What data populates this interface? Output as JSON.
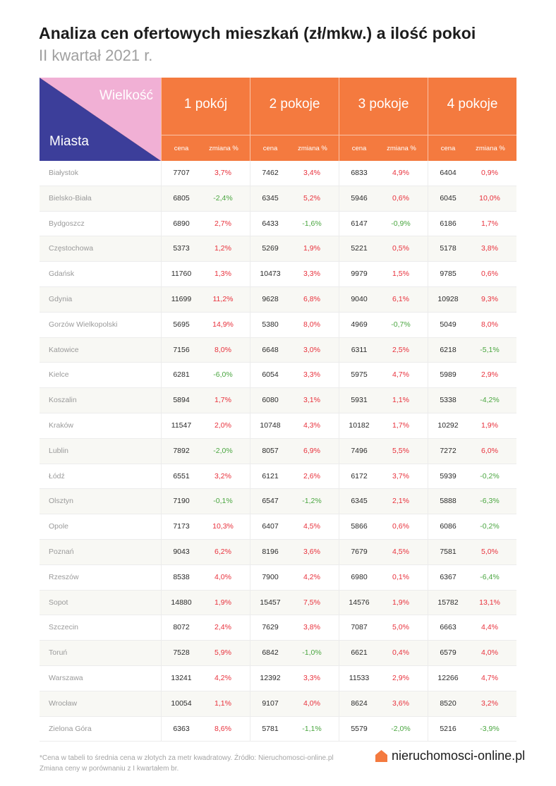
{
  "title": "Analiza cen ofertowych mieszkań (zł/mkw.) a ilość pokoi",
  "subtitle": "II kwartał 2021 r.",
  "colors": {
    "header": "#f47a3f",
    "corner_blue": "#3c3e9a",
    "corner_pink": "#f1b0d5",
    "increase": "#e8313c",
    "decrease": "#4aa640"
  },
  "corner": {
    "top_label": "Wielkość",
    "bottom_label": "Miasta"
  },
  "groups": [
    {
      "title": "1 pokój",
      "col_price": "cena",
      "col_change": "zmiana %"
    },
    {
      "title": "2 pokoje",
      "col_price": "cena",
      "col_change": "zmiana %"
    },
    {
      "title": "3 pokoje",
      "col_price": "cena",
      "col_change": "zmiana %"
    },
    {
      "title": "4 pokoje",
      "col_price": "cena",
      "col_change": "zmiana %"
    }
  ],
  "rows": [
    {
      "city": "Białystok",
      "cells": [
        {
          "price": "7707",
          "change": "3,7%"
        },
        {
          "price": "7462",
          "change": "3,4%"
        },
        {
          "price": "6833",
          "change": "4,9%"
        },
        {
          "price": "6404",
          "change": "0,9%"
        }
      ]
    },
    {
      "city": "Bielsko-Biała",
      "cells": [
        {
          "price": "6805",
          "change": "-2,4%"
        },
        {
          "price": "6345",
          "change": "5,2%"
        },
        {
          "price": "5946",
          "change": "0,6%"
        },
        {
          "price": "6045",
          "change": "10,0%"
        }
      ]
    },
    {
      "city": "Bydgoszcz",
      "cells": [
        {
          "price": "6890",
          "change": "2,7%"
        },
        {
          "price": "6433",
          "change": "-1,6%"
        },
        {
          "price": "6147",
          "change": "-0,9%"
        },
        {
          "price": "6186",
          "change": "1,7%"
        }
      ]
    },
    {
      "city": "Częstochowa",
      "cells": [
        {
          "price": "5373",
          "change": "1,2%"
        },
        {
          "price": "5269",
          "change": "1,9%"
        },
        {
          "price": "5221",
          "change": "0,5%"
        },
        {
          "price": "5178",
          "change": "3,8%"
        }
      ]
    },
    {
      "city": "Gdańsk",
      "cells": [
        {
          "price": "11760",
          "change": "1,3%"
        },
        {
          "price": "10473",
          "change": "3,3%"
        },
        {
          "price": "9979",
          "change": "1,5%"
        },
        {
          "price": "9785",
          "change": "0,6%"
        }
      ]
    },
    {
      "city": "Gdynia",
      "cells": [
        {
          "price": "11699",
          "change": "11,2%"
        },
        {
          "price": "9628",
          "change": "6,8%"
        },
        {
          "price": "9040",
          "change": "6,1%"
        },
        {
          "price": "10928",
          "change": "9,3%"
        }
      ]
    },
    {
      "city": "Gorzów Wielkopolski",
      "cells": [
        {
          "price": "5695",
          "change": "14,9%"
        },
        {
          "price": "5380",
          "change": "8,0%"
        },
        {
          "price": "4969",
          "change": "-0,7%"
        },
        {
          "price": "5049",
          "change": "8,0%"
        }
      ]
    },
    {
      "city": "Katowice",
      "cells": [
        {
          "price": "7156",
          "change": "8,0%"
        },
        {
          "price": "6648",
          "change": "3,0%"
        },
        {
          "price": "6311",
          "change": "2,5%"
        },
        {
          "price": "6218",
          "change": "-5,1%"
        }
      ]
    },
    {
      "city": "Kielce",
      "cells": [
        {
          "price": "6281",
          "change": "-6,0%"
        },
        {
          "price": "6054",
          "change": "3,3%"
        },
        {
          "price": "5975",
          "change": "4,7%"
        },
        {
          "price": "5989",
          "change": "2,9%"
        }
      ]
    },
    {
      "city": "Koszalin",
      "cells": [
        {
          "price": "5894",
          "change": "1,7%"
        },
        {
          "price": "6080",
          "change": "3,1%"
        },
        {
          "price": "5931",
          "change": "1,1%"
        },
        {
          "price": "5338",
          "change": "-4,2%"
        }
      ]
    },
    {
      "city": "Kraków",
      "cells": [
        {
          "price": "11547",
          "change": "2,0%"
        },
        {
          "price": "10748",
          "change": "4,3%"
        },
        {
          "price": "10182",
          "change": "1,7%"
        },
        {
          "price": "10292",
          "change": "1,9%"
        }
      ]
    },
    {
      "city": "Lublin",
      "cells": [
        {
          "price": "7892",
          "change": "-2,0%"
        },
        {
          "price": "8057",
          "change": "6,9%"
        },
        {
          "price": "7496",
          "change": "5,5%"
        },
        {
          "price": "7272",
          "change": "6,0%"
        }
      ]
    },
    {
      "city": "Łódź",
      "cells": [
        {
          "price": "6551",
          "change": "3,2%"
        },
        {
          "price": "6121",
          "change": "2,6%"
        },
        {
          "price": "6172",
          "change": "3,7%"
        },
        {
          "price": "5939",
          "change": "-0,2%"
        }
      ]
    },
    {
      "city": "Olsztyn",
      "cells": [
        {
          "price": "7190",
          "change": "-0,1%"
        },
        {
          "price": "6547",
          "change": "-1,2%"
        },
        {
          "price": "6345",
          "change": "2,1%"
        },
        {
          "price": "5888",
          "change": "-6,3%"
        }
      ]
    },
    {
      "city": "Opole",
      "cells": [
        {
          "price": "7173",
          "change": "10,3%"
        },
        {
          "price": "6407",
          "change": "4,5%"
        },
        {
          "price": "5866",
          "change": "0,6%"
        },
        {
          "price": "6086",
          "change": "-0,2%"
        }
      ]
    },
    {
      "city": "Poznań",
      "cells": [
        {
          "price": "9043",
          "change": "6,2%"
        },
        {
          "price": "8196",
          "change": "3,6%"
        },
        {
          "price": "7679",
          "change": "4,5%"
        },
        {
          "price": "7581",
          "change": "5,0%"
        }
      ]
    },
    {
      "city": "Rzeszów",
      "cells": [
        {
          "price": "8538",
          "change": "4,0%"
        },
        {
          "price": "7900",
          "change": "4,2%"
        },
        {
          "price": "6980",
          "change": "0,1%"
        },
        {
          "price": "6367",
          "change": "-6,4%"
        }
      ]
    },
    {
      "city": "Sopot",
      "cells": [
        {
          "price": "14880",
          "change": "1,9%"
        },
        {
          "price": "15457",
          "change": "7,5%"
        },
        {
          "price": "14576",
          "change": "1,9%"
        },
        {
          "price": "15782",
          "change": "13,1%"
        }
      ]
    },
    {
      "city": "Szczecin",
      "cells": [
        {
          "price": "8072",
          "change": "2,4%"
        },
        {
          "price": "7629",
          "change": "3,8%"
        },
        {
          "price": "7087",
          "change": "5,0%"
        },
        {
          "price": "6663",
          "change": "4,4%"
        }
      ]
    },
    {
      "city": "Toruń",
      "cells": [
        {
          "price": "7528",
          "change": "5,9%"
        },
        {
          "price": "6842",
          "change": "-1,0%"
        },
        {
          "price": "6621",
          "change": "0,4%"
        },
        {
          "price": "6579",
          "change": "4,0%"
        }
      ]
    },
    {
      "city": "Warszawa",
      "cells": [
        {
          "price": "13241",
          "change": "4,2%"
        },
        {
          "price": "12392",
          "change": "3,3%"
        },
        {
          "price": "11533",
          "change": "2,9%"
        },
        {
          "price": "12266",
          "change": "4,7%"
        }
      ]
    },
    {
      "city": "Wrocław",
      "cells": [
        {
          "price": "10054",
          "change": "1,1%"
        },
        {
          "price": "9107",
          "change": "4,0%"
        },
        {
          "price": "8624",
          "change": "3,6%"
        },
        {
          "price": "8520",
          "change": "3,2%"
        }
      ]
    },
    {
      "city": "Zielona Góra",
      "cells": [
        {
          "price": "6363",
          "change": "8,6%"
        },
        {
          "price": "5781",
          "change": "-1,1%"
        },
        {
          "price": "5579",
          "change": "-2,0%"
        },
        {
          "price": "5216",
          "change": "-3,9%"
        }
      ]
    }
  ],
  "footnote": {
    "line1": "*Cena w tabeli to średnia cena w złotych za metr kwadratowy. Źródło: Nieruchomosci-online.pl",
    "line2": "Zmiana ceny w porównaniu z I kwartałem br."
  },
  "brand": {
    "name": "nieruchomosci-online.pl",
    "icon": "house-icon"
  }
}
